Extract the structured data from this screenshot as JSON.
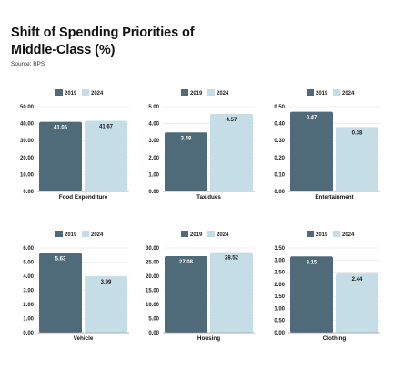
{
  "header": {
    "title": "Shift of Spending Priorities of Middle-Class (%)",
    "source": "Source: BPS"
  },
  "colors": {
    "series_2019": "#4f6b79",
    "series_2024": "#c5dde6",
    "gridline": "#e2e2e2",
    "axis": "#999999"
  },
  "chart_data": [
    {
      "type": "bar",
      "categories": [
        "Food Expenditure"
      ],
      "series": [
        {
          "name": "2019",
          "values": [
            41.05
          ]
        },
        {
          "name": "2024",
          "values": [
            41.67
          ]
        }
      ],
      "xlabel": "Food Expenditure",
      "ylim": [
        0,
        50
      ],
      "yticks": [
        "0.00",
        "10.00",
        "20.00",
        "30.00",
        "40.00",
        "50.00"
      ],
      "value_labels": [
        "41.05",
        "41.67"
      ],
      "legend": "top",
      "grid": true
    },
    {
      "type": "bar",
      "categories": [
        "Tax/dues"
      ],
      "series": [
        {
          "name": "2019",
          "values": [
            3.48
          ]
        },
        {
          "name": "2024",
          "values": [
            4.57
          ]
        }
      ],
      "xlabel": "Tax/dues",
      "ylim": [
        0,
        5
      ],
      "yticks": [
        "0.00",
        "1.00",
        "2.00",
        "3.00",
        "4.00",
        "5.00"
      ],
      "value_labels": [
        "3.48",
        "4.57"
      ],
      "legend": "top",
      "grid": true
    },
    {
      "type": "bar",
      "categories": [
        "Entertainment"
      ],
      "series": [
        {
          "name": "2019",
          "values": [
            0.47
          ]
        },
        {
          "name": "2024",
          "values": [
            0.38
          ]
        }
      ],
      "xlabel": "Entertainment",
      "ylim": [
        0,
        0.5
      ],
      "yticks": [
        "0.00",
        "0.10",
        "0.20",
        "0.30",
        "0.40",
        "0.50"
      ],
      "value_labels": [
        "0.47",
        "0.38"
      ],
      "legend": "top",
      "grid": true
    },
    {
      "type": "bar",
      "categories": [
        "Vehicle"
      ],
      "series": [
        {
          "name": "2019",
          "values": [
            5.63
          ]
        },
        {
          "name": "2024",
          "values": [
            3.99
          ]
        }
      ],
      "xlabel": "Vehicle",
      "ylim": [
        0,
        6
      ],
      "yticks": [
        "0.00",
        "1.00",
        "2.00",
        "3.00",
        "4.00",
        "5.00",
        "6.00"
      ],
      "value_labels": [
        "5.63",
        "3.99"
      ],
      "legend": "top",
      "grid": true
    },
    {
      "type": "bar",
      "categories": [
        "Housing"
      ],
      "series": [
        {
          "name": "2019",
          "values": [
            27.08
          ]
        },
        {
          "name": "2024",
          "values": [
            28.52
          ]
        }
      ],
      "xlabel": "Housing",
      "ylim": [
        0,
        30
      ],
      "yticks": [
        "0.00",
        "5.00",
        "10.00",
        "15.00",
        "20.00",
        "25.00",
        "30.00"
      ],
      "value_labels": [
        "27.08",
        "28.52"
      ],
      "legend": "top",
      "grid": true
    },
    {
      "type": "bar",
      "categories": [
        "Clothing"
      ],
      "series": [
        {
          "name": "2019",
          "values": [
            3.15
          ]
        },
        {
          "name": "2024",
          "values": [
            2.44
          ]
        }
      ],
      "xlabel": "Clothing",
      "ylim": [
        0,
        3.5
      ],
      "yticks": [
        "0.00",
        "0.50",
        "1.00",
        "1.50",
        "2.00",
        "2.50",
        "3.00",
        "3.50"
      ],
      "value_labels": [
        "3.15",
        "2.44"
      ],
      "legend": "top",
      "grid": true
    }
  ]
}
